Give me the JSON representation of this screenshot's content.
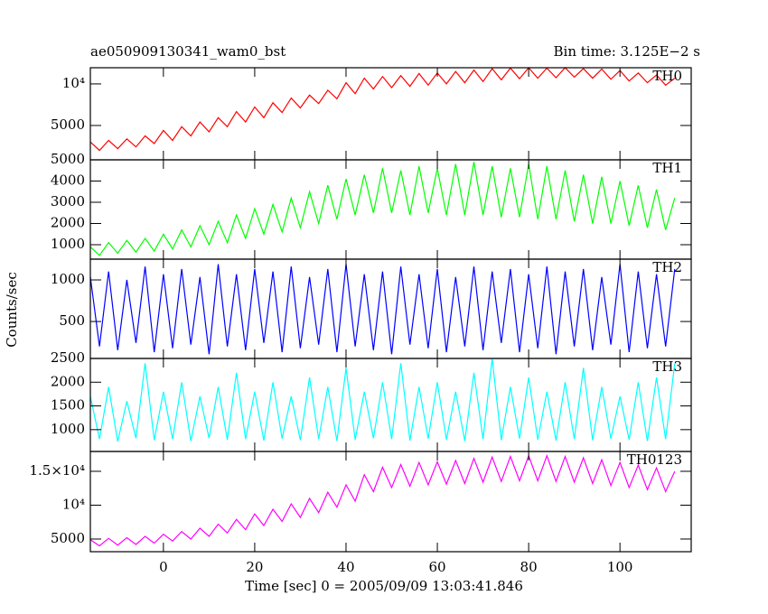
{
  "chart_data": {
    "type": "line",
    "title": "ae050909130341_wam0_bst",
    "subtitle": "Bin time: 3.125E−2 s",
    "xlabel": "Time [sec] 0 = 2005/09/09 13:03:41.846",
    "ylabel": "Counts/sec",
    "xlim": [
      -16,
      115.6
    ],
    "xticks": [
      0,
      20,
      40,
      60,
      80,
      100
    ],
    "x": [
      -16,
      -14,
      -12,
      -10,
      -8,
      -6,
      -4,
      -2,
      0,
      2,
      4,
      6,
      8,
      10,
      12,
      14,
      16,
      18,
      20,
      22,
      24,
      26,
      28,
      30,
      32,
      34,
      36,
      38,
      40,
      42,
      44,
      46,
      48,
      50,
      52,
      54,
      56,
      58,
      60,
      62,
      64,
      66,
      68,
      70,
      72,
      74,
      76,
      78,
      80,
      82,
      84,
      86,
      88,
      90,
      92,
      94,
      96,
      98,
      100,
      102,
      104,
      106,
      108,
      110,
      112
    ],
    "series": [
      {
        "name": "TH0",
        "color": "#ff0000",
        "log": true,
        "ylim": [
          2820,
          13100
        ],
        "yticks": [
          5000,
          {
            "value": 10000,
            "label": "10⁴"
          }
        ],
        "values": [
          3800,
          3300,
          3900,
          3400,
          4000,
          3500,
          4200,
          3700,
          4600,
          3900,
          4900,
          4200,
          5300,
          4500,
          5700,
          4900,
          6300,
          5300,
          6800,
          5700,
          7300,
          6200,
          7900,
          6700,
          8300,
          7200,
          9000,
          7800,
          10200,
          8500,
          11000,
          9200,
          11300,
          9400,
          11500,
          9600,
          11900,
          9800,
          12000,
          10000,
          12300,
          10200,
          12600,
          10400,
          12900,
          10700,
          13000,
          10900,
          13100,
          11000,
          13000,
          11100,
          13100,
          11200,
          12900,
          11000,
          12800,
          10800,
          12500,
          10500,
          12000,
          10200,
          11600,
          9800,
          11000
        ]
      },
      {
        "name": "TH1",
        "color": "#00ff00",
        "log": false,
        "ylim": [
          320,
          5000
        ],
        "yticks": [
          1000,
          2000,
          3000,
          4000,
          5000
        ],
        "values": [
          900,
          500,
          1100,
          600,
          1200,
          650,
          1300,
          700,
          1500,
          800,
          1700,
          900,
          1900,
          1000,
          2100,
          1100,
          2400,
          1300,
          2700,
          1500,
          2900,
          1600,
          3200,
          1800,
          3500,
          2000,
          3800,
          2200,
          4100,
          2400,
          4300,
          2500,
          4600,
          2500,
          4500,
          2400,
          4700,
          2500,
          4600,
          2400,
          4800,
          2400,
          4900,
          2400,
          4700,
          2300,
          4600,
          2300,
          4800,
          2200,
          4700,
          2200,
          4500,
          2100,
          4300,
          2000,
          4200,
          2000,
          4000,
          1900,
          3800,
          1800,
          3600,
          1700,
          3200
        ]
      },
      {
        "name": "TH2",
        "color": "#0000ff",
        "log": true,
        "ylim": [
          270,
          1414
        ],
        "yticks": [
          500,
          1000
        ],
        "values": [
          1050,
          330,
          1150,
          310,
          1000,
          350,
          1250,
          300,
          1100,
          320,
          1200,
          340,
          1050,
          290,
          1300,
          330,
          1100,
          310,
          1200,
          350,
          1150,
          300,
          1250,
          320,
          1050,
          340,
          1200,
          300,
          1300,
          330,
          1100,
          310,
          1150,
          290,
          1250,
          340,
          1100,
          320,
          1200,
          300,
          1050,
          330,
          1250,
          310,
          1150,
          350,
          1200,
          300,
          1100,
          320,
          1250,
          290,
          1150,
          330,
          1200,
          310,
          1050,
          340,
          1300,
          300,
          1150,
          320,
          1100,
          330,
          1200
        ]
      },
      {
        "name": "TH3",
        "color": "#00ffff",
        "log": false,
        "ylim": [
          540,
          2500
        ],
        "yticks": [
          1000,
          1500,
          2000,
          2500
        ],
        "values": [
          1700,
          800,
          1900,
          750,
          1600,
          820,
          2400,
          780,
          1800,
          800,
          2000,
          760,
          1700,
          820,
          1900,
          790,
          2200,
          800,
          1800,
          770,
          2000,
          810,
          1700,
          780,
          2100,
          800,
          1900,
          760,
          2300,
          790,
          1800,
          820,
          2000,
          800,
          2400,
          770,
          1900,
          810,
          2000,
          790,
          1800,
          760,
          2200,
          800,
          2500,
          780,
          1900,
          810,
          2100,
          790,
          1800,
          770,
          2000,
          800,
          2300,
          780,
          1900,
          810,
          1700,
          790,
          2000,
          760,
          2100,
          800,
          2400
        ]
      },
      {
        "name": "TH0123",
        "color": "#ff00ff",
        "log": false,
        "ylim": [
          3130,
          17930
        ],
        "yticks": [
          5000,
          {
            "value": 10000,
            "label": "10⁴"
          },
          {
            "value": 15000,
            "label": "1.5×10⁴"
          }
        ],
        "values": [
          4900,
          4000,
          5100,
          4100,
          5200,
          4200,
          5400,
          4400,
          5700,
          4700,
          6100,
          5000,
          6600,
          5400,
          7200,
          5900,
          7900,
          6400,
          8700,
          7000,
          9400,
          7600,
          10200,
          8200,
          11000,
          8900,
          11900,
          9700,
          13000,
          10600,
          14500,
          12000,
          15600,
          12600,
          16000,
          12800,
          16300,
          13000,
          16400,
          13100,
          16600,
          13200,
          16900,
          13400,
          17100,
          13500,
          17200,
          13600,
          17300,
          13600,
          17300,
          13500,
          17200,
          13400,
          17000,
          13200,
          16700,
          12900,
          16300,
          12600,
          15900,
          12300,
          15500,
          12000,
          15000
        ]
      }
    ]
  }
}
